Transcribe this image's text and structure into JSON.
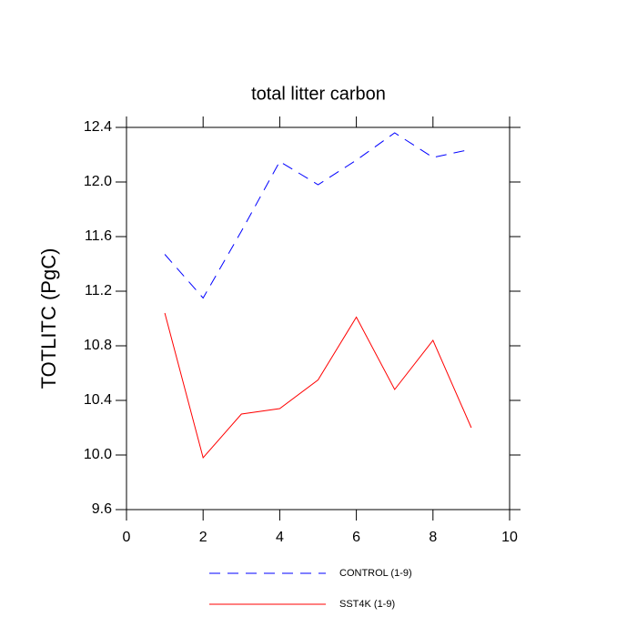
{
  "chart_data": {
    "type": "line",
    "title": "total litter carbon",
    "y_label": "TOTLITC  (PgC)",
    "x": [
      1,
      2,
      3,
      4,
      5,
      6,
      7,
      8,
      9
    ],
    "series": [
      {
        "name": "CONTROL (1-9)",
        "color": "#0000ff",
        "dash": "dashed",
        "values": [
          11.47,
          11.15,
          11.64,
          12.15,
          11.98,
          12.16,
          12.36,
          12.18,
          12.24
        ]
      },
      {
        "name": "SST4K (1-9)",
        "color": "#ff0000",
        "dash": "solid",
        "values": [
          11.04,
          9.98,
          10.3,
          10.34,
          10.55,
          11.01,
          10.48,
          10.84,
          10.2
        ]
      }
    ],
    "xlim": [
      0,
      10
    ],
    "xticks": [
      0,
      2,
      4,
      6,
      8,
      10
    ],
    "ylim": [
      9.6,
      12.4
    ],
    "yticks": [
      9.6,
      {
        "value": 10,
        "label": "10.0"
      },
      10.4,
      10.8,
      11.2,
      11.6,
      {
        "value": 12,
        "label": "12.0"
      },
      12.4
    ],
    "legend": "bottom"
  }
}
